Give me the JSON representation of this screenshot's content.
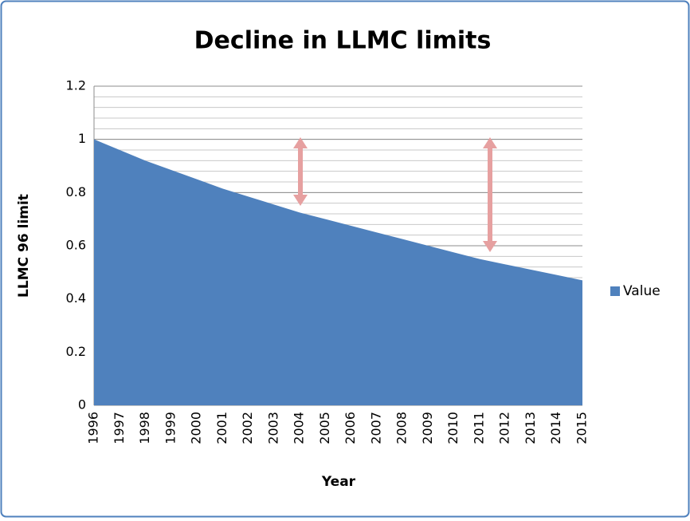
{
  "chart_data": {
    "type": "area",
    "title": "Decline in LLMC limits",
    "x_label": "Year",
    "y_label": "LLMC 96 limit",
    "categories": [
      "1996",
      "1997",
      "1998",
      "1999",
      "2000",
      "2001",
      "2002",
      "2003",
      "2004",
      "2005",
      "2006",
      "2007",
      "2008",
      "2009",
      "2010",
      "2011",
      "2012",
      "2013",
      "2014",
      "2015"
    ],
    "series": [
      {
        "name": "Value",
        "color": "#4f81bd",
        "values": [
          1,
          0.96,
          0.92,
          0.885,
          0.85,
          0.815,
          0.785,
          0.755,
          0.725,
          0.7,
          0.675,
          0.65,
          0.625,
          0.6,
          0.575,
          0.55,
          0.53,
          0.51,
          0.49,
          0.47
        ]
      }
    ],
    "ylim": [
      0,
      1.2
    ],
    "yticks": [
      0,
      0.2,
      0.4,
      0.6,
      0.8,
      1,
      1.2
    ],
    "grid": true,
    "legend": "right"
  }
}
